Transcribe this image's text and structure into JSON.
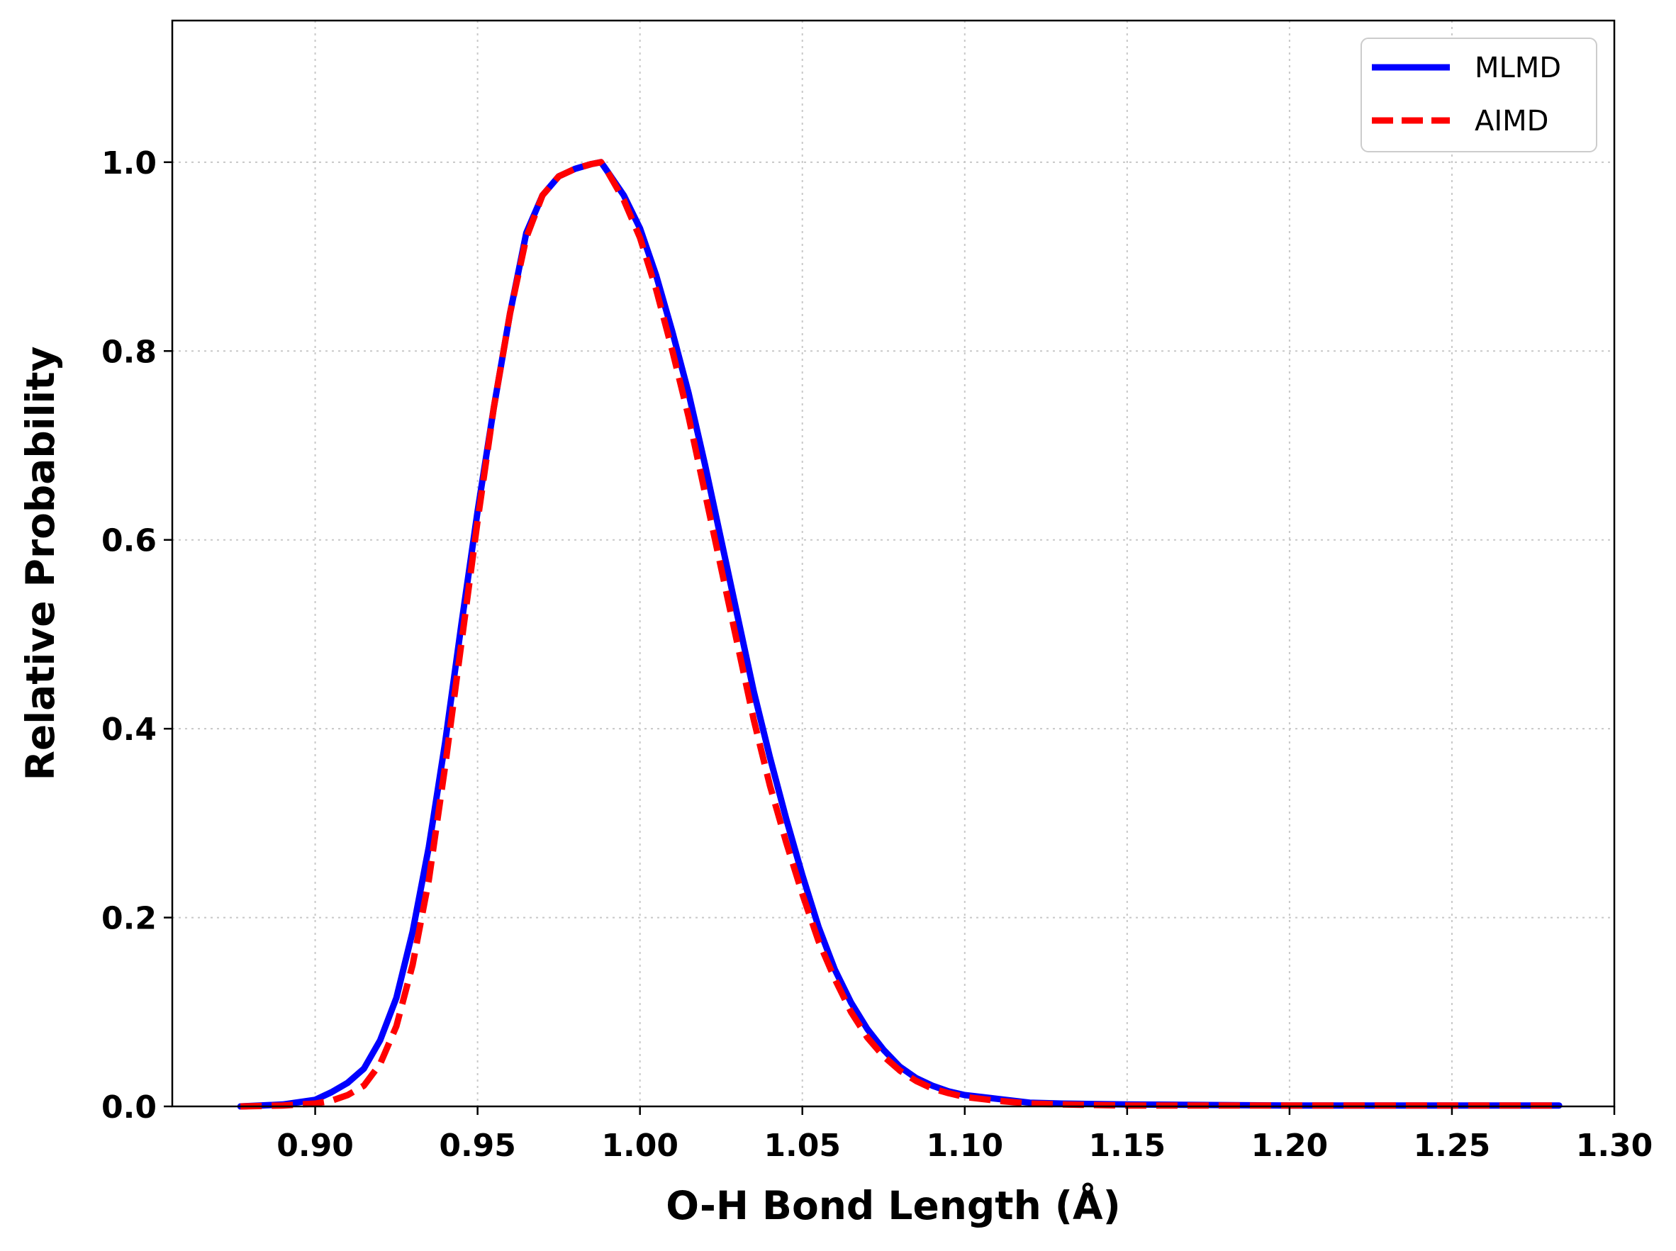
{
  "chart_data": {
    "type": "line",
    "xlabel": "O-H Bond Length (Å)",
    "ylabel": "Relative Probability",
    "xlim": [
      0.856,
      1.3
    ],
    "ylim": [
      0.0,
      1.15
    ],
    "x_ticks": [
      0.9,
      0.95,
      1.0,
      1.05,
      1.1,
      1.15,
      1.2,
      1.25,
      1.3
    ],
    "x_tick_labels": [
      "0.90",
      "0.95",
      "1.00",
      "1.05",
      "1.10",
      "1.15",
      "1.20",
      "1.25",
      "1.30"
    ],
    "y_ticks": [
      0.0,
      0.2,
      0.4,
      0.6,
      0.8,
      1.0
    ],
    "y_tick_labels": [
      "0.0",
      "0.2",
      "0.4",
      "0.6",
      "0.8",
      "1.0"
    ],
    "grid": true,
    "legend_position": "top-right",
    "series": [
      {
        "name": "MLMD",
        "color": "#0000ff",
        "style": "solid",
        "x": [
          0.877,
          0.89,
          0.9,
          0.905,
          0.91,
          0.915,
          0.92,
          0.925,
          0.93,
          0.935,
          0.94,
          0.945,
          0.95,
          0.955,
          0.96,
          0.965,
          0.97,
          0.975,
          0.98,
          0.985,
          0.988,
          0.99,
          0.995,
          1.0,
          1.005,
          1.01,
          1.015,
          1.02,
          1.025,
          1.03,
          1.035,
          1.04,
          1.045,
          1.05,
          1.055,
          1.06,
          1.065,
          1.07,
          1.075,
          1.08,
          1.085,
          1.09,
          1.095,
          1.1,
          1.11,
          1.12,
          1.13,
          1.15,
          1.2,
          1.25,
          1.283
        ],
        "y": [
          0.0,
          0.002,
          0.007,
          0.015,
          0.025,
          0.04,
          0.07,
          0.115,
          0.185,
          0.275,
          0.385,
          0.51,
          0.63,
          0.74,
          0.84,
          0.925,
          0.965,
          0.985,
          0.993,
          0.998,
          1.0,
          0.99,
          0.965,
          0.93,
          0.88,
          0.82,
          0.755,
          0.68,
          0.6,
          0.52,
          0.44,
          0.37,
          0.305,
          0.245,
          0.19,
          0.145,
          0.11,
          0.082,
          0.06,
          0.042,
          0.03,
          0.022,
          0.016,
          0.012,
          0.008,
          0.004,
          0.003,
          0.002,
          0.001,
          0.001,
          0.001
        ]
      },
      {
        "name": "AIMD",
        "color": "#ff0000",
        "style": "dashed",
        "x": [
          0.877,
          0.89,
          0.9,
          0.905,
          0.91,
          0.915,
          0.92,
          0.925,
          0.93,
          0.935,
          0.94,
          0.945,
          0.95,
          0.955,
          0.96,
          0.965,
          0.97,
          0.975,
          0.98,
          0.985,
          0.988,
          0.99,
          0.995,
          1.0,
          1.005,
          1.01,
          1.015,
          1.02,
          1.025,
          1.03,
          1.035,
          1.04,
          1.045,
          1.05,
          1.055,
          1.06,
          1.065,
          1.07,
          1.075,
          1.08,
          1.085,
          1.09,
          1.095,
          1.1,
          1.11,
          1.12,
          1.13,
          1.15,
          1.2,
          1.25,
          1.283
        ],
        "y": [
          0.0,
          0.001,
          0.003,
          0.006,
          0.012,
          0.022,
          0.045,
          0.085,
          0.15,
          0.24,
          0.36,
          0.49,
          0.62,
          0.74,
          0.84,
          0.92,
          0.965,
          0.985,
          0.993,
          0.998,
          1.0,
          0.99,
          0.96,
          0.92,
          0.865,
          0.8,
          0.73,
          0.65,
          0.57,
          0.49,
          0.41,
          0.34,
          0.28,
          0.225,
          0.175,
          0.135,
          0.1,
          0.073,
          0.053,
          0.038,
          0.027,
          0.019,
          0.014,
          0.01,
          0.006,
          0.003,
          0.002,
          0.001,
          0.001,
          0.001,
          0.001
        ]
      }
    ]
  }
}
